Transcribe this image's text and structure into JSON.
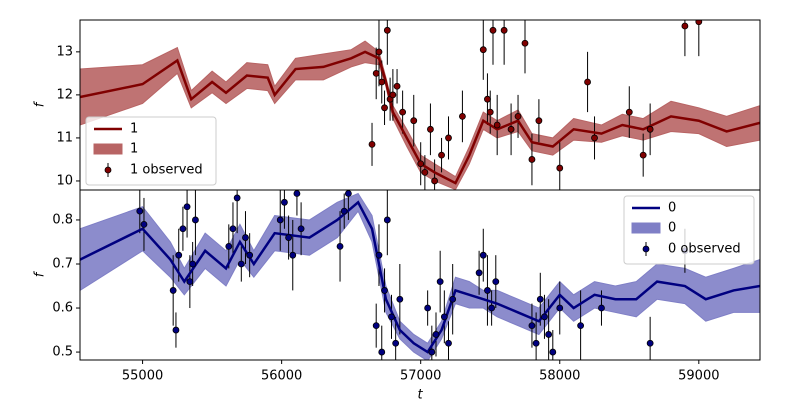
{
  "chart_data": [
    {
      "type": "line",
      "ylabel": "f",
      "xlim": [
        54550,
        59440
      ],
      "ylim": [
        9.79,
        13.74
      ],
      "yticks": [
        10,
        11,
        12,
        13
      ],
      "legend": "lower left",
      "x": [
        54550,
        55000,
        55250,
        55350,
        55500,
        55600,
        55750,
        55900,
        55950,
        56100,
        56300,
        56500,
        56600,
        56700,
        56750,
        56800,
        56900,
        57000,
        57100,
        57250,
        57350,
        57450,
        57550,
        57700,
        57800,
        57950,
        58100,
        58300,
        58450,
        58600,
        58800,
        59000,
        59200,
        59440
      ],
      "series": [
        {
          "name": "1",
          "color": "#800000",
          "values": [
            11.95,
            12.25,
            12.8,
            11.9,
            12.3,
            12.05,
            12.45,
            12.4,
            12.0,
            12.6,
            12.65,
            12.85,
            13.0,
            12.85,
            12.3,
            11.6,
            11.0,
            10.4,
            10.2,
            9.95,
            10.6,
            11.4,
            11.2,
            11.4,
            10.9,
            10.8,
            11.2,
            11.1,
            11.3,
            11.2,
            11.5,
            11.4,
            11.15,
            11.35
          ]
        }
      ],
      "band": {
        "name": "1",
        "color": "#b86464",
        "lower": [
          11.3,
          11.8,
          12.5,
          11.7,
          12.05,
          11.8,
          12.15,
          12.1,
          11.8,
          12.35,
          12.35,
          12.65,
          12.75,
          12.7,
          12.2,
          11.45,
          10.8,
          10.2,
          10.0,
          9.8,
          10.4,
          11.2,
          11.0,
          11.15,
          10.7,
          10.6,
          10.95,
          10.9,
          11.05,
          10.95,
          11.15,
          11.1,
          10.8,
          10.95
        ],
        "upper": [
          12.6,
          12.7,
          13.1,
          12.1,
          12.55,
          12.3,
          12.75,
          12.7,
          12.2,
          12.85,
          12.95,
          13.05,
          13.25,
          13.0,
          12.4,
          11.75,
          11.2,
          10.6,
          10.4,
          10.1,
          10.8,
          11.6,
          11.4,
          11.65,
          11.1,
          11.0,
          11.45,
          11.3,
          11.55,
          11.45,
          11.85,
          11.7,
          11.5,
          11.75
        ]
      },
      "observed": {
        "name": "1 observed",
        "color": "#800000",
        "x": [
          56650,
          56680,
          56700,
          56720,
          56740,
          56760,
          56780,
          56800,
          56830,
          56870,
          56950,
          57000,
          57030,
          57070,
          57100,
          57150,
          57200,
          57300,
          57450,
          57480,
          57500,
          57520,
          57550,
          57600,
          57650,
          57700,
          57750,
          57800,
          57850,
          58000,
          58200,
          58250,
          58500,
          58600,
          58650,
          58900,
          59000
        ],
        "values": [
          10.85,
          12.5,
          13.0,
          12.3,
          11.7,
          13.5,
          11.9,
          12.0,
          12.2,
          11.6,
          11.4,
          10.4,
          10.2,
          11.2,
          10.0,
          10.6,
          11.0,
          11.5,
          13.05,
          11.9,
          11.6,
          13.5,
          11.3,
          13.5,
          11.2,
          11.5,
          13.2,
          10.5,
          11.4,
          10.3,
          12.3,
          11.0,
          11.6,
          10.6,
          11.2,
          13.6,
          13.7
        ],
        "errors": [
          0.5,
          0.6,
          0.8,
          0.5,
          0.4,
          0.8,
          0.5,
          0.6,
          0.4,
          0.5,
          0.6,
          0.5,
          0.4,
          0.6,
          0.5,
          0.4,
          0.5,
          0.6,
          0.7,
          0.6,
          0.5,
          0.8,
          0.7,
          0.8,
          0.6,
          0.5,
          0.7,
          0.6,
          0.5,
          0.6,
          0.7,
          0.5,
          0.6,
          0.5,
          0.6,
          0.7,
          0.8
        ]
      }
    },
    {
      "type": "line",
      "ylabel": "f",
      "xlabel": "t",
      "xlim": [
        54550,
        59440
      ],
      "xticks": [
        55000,
        56000,
        57000,
        58000,
        59000
      ],
      "ylim": [
        0.482,
        0.868
      ],
      "yticks": [
        0.5,
        0.6,
        0.7,
        0.8
      ],
      "legend": "upper right",
      "x": [
        54550,
        55000,
        55200,
        55300,
        55450,
        55600,
        55700,
        55800,
        55950,
        56200,
        56400,
        56550,
        56650,
        56750,
        56850,
        56950,
        57050,
        57150,
        57250,
        57350,
        57450,
        57550,
        57700,
        57850,
        58000,
        58100,
        58250,
        58400,
        58550,
        58700,
        58900,
        59050,
        59250,
        59440
      ],
      "series": [
        {
          "name": "0",
          "color": "#000080",
          "values": [
            0.71,
            0.78,
            0.71,
            0.66,
            0.73,
            0.69,
            0.75,
            0.7,
            0.77,
            0.76,
            0.8,
            0.84,
            0.78,
            0.62,
            0.55,
            0.52,
            0.5,
            0.55,
            0.64,
            0.63,
            0.62,
            0.61,
            0.59,
            0.57,
            0.63,
            0.6,
            0.63,
            0.62,
            0.62,
            0.66,
            0.65,
            0.62,
            0.64,
            0.65
          ]
        }
      ],
      "band": {
        "name": "0",
        "color": "#7f7fc6",
        "lower": [
          0.64,
          0.73,
          0.67,
          0.63,
          0.69,
          0.65,
          0.71,
          0.67,
          0.73,
          0.72,
          0.76,
          0.82,
          0.75,
          0.59,
          0.53,
          0.5,
          0.48,
          0.53,
          0.61,
          0.6,
          0.6,
          0.58,
          0.56,
          0.54,
          0.6,
          0.57,
          0.6,
          0.59,
          0.58,
          0.62,
          0.61,
          0.57,
          0.59,
          0.59
        ],
        "upper": [
          0.78,
          0.83,
          0.75,
          0.69,
          0.77,
          0.73,
          0.79,
          0.73,
          0.81,
          0.8,
          0.84,
          0.86,
          0.81,
          0.65,
          0.57,
          0.54,
          0.52,
          0.57,
          0.67,
          0.66,
          0.64,
          0.64,
          0.62,
          0.6,
          0.66,
          0.63,
          0.66,
          0.65,
          0.66,
          0.7,
          0.69,
          0.67,
          0.69,
          0.71
        ]
      },
      "observed": {
        "name": "0 observed",
        "color": "#000080",
        "x": [
          54980,
          55010,
          55220,
          55240,
          55260,
          55290,
          55320,
          55340,
          55360,
          55380,
          55620,
          55650,
          55680,
          55710,
          55740,
          55770,
          55990,
          56020,
          56050,
          56080,
          56110,
          56140,
          56420,
          56450,
          56480,
          56680,
          56700,
          56720,
          56740,
          56760,
          56790,
          56820,
          56850,
          57050,
          57080,
          57110,
          57140,
          57170,
          57200,
          57230,
          57420,
          57450,
          57480,
          57510,
          57540,
          57800,
          57830,
          57860,
          57890,
          57920,
          57950,
          58000,
          58150,
          58300,
          58650,
          58900
        ],
        "values": [
          0.82,
          0.79,
          0.64,
          0.55,
          0.72,
          0.78,
          0.83,
          0.66,
          0.7,
          0.8,
          0.74,
          0.78,
          0.85,
          0.7,
          0.76,
          0.72,
          0.8,
          0.84,
          0.76,
          0.72,
          0.86,
          0.78,
          0.74,
          0.82,
          0.86,
          0.56,
          0.72,
          0.5,
          0.64,
          0.8,
          0.58,
          0.52,
          0.62,
          0.6,
          0.5,
          0.54,
          0.66,
          0.58,
          0.52,
          0.62,
          0.68,
          0.72,
          0.64,
          0.6,
          0.66,
          0.56,
          0.52,
          0.62,
          0.58,
          0.54,
          0.5,
          0.6,
          0.56,
          0.6,
          0.52,
          0.73
        ],
        "errors": [
          0.05,
          0.06,
          0.08,
          0.04,
          0.06,
          0.05,
          0.07,
          0.06,
          0.05,
          0.08,
          0.05,
          0.06,
          0.08,
          0.04,
          0.06,
          0.05,
          0.07,
          0.06,
          0.05,
          0.08,
          0.05,
          0.06,
          0.08,
          0.04,
          0.06,
          0.05,
          0.07,
          0.06,
          0.05,
          0.08,
          0.05,
          0.06,
          0.08,
          0.04,
          0.06,
          0.05,
          0.07,
          0.06,
          0.05,
          0.08,
          0.05,
          0.06,
          0.08,
          0.04,
          0.06,
          0.05,
          0.07,
          0.06,
          0.05,
          0.08,
          0.05,
          0.06,
          0.08,
          0.04,
          0.06,
          0.05
        ]
      }
    }
  ]
}
